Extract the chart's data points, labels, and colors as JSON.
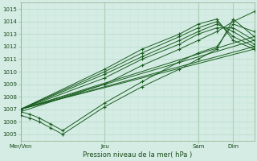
{
  "xlabel": "Pression niveau de la mer( hPa )",
  "bg_color": "#d4ece3",
  "grid_color_major": "#b8d8cc",
  "grid_color_minor": "#c8e4da",
  "line_color": "#1a5e20",
  "ylim": [
    1004.5,
    1015.5
  ],
  "yticks": [
    1005,
    1006,
    1007,
    1008,
    1009,
    1010,
    1011,
    1012,
    1013,
    1014,
    1015
  ],
  "xtick_positions": [
    0.0,
    0.36,
    0.76,
    0.91
  ],
  "xtick_labels": [
    "Mer/Ven",
    "Jeu",
    "Sam",
    "Dim"
  ],
  "lines": [
    {
      "x": [
        0.0,
        0.04,
        0.08,
        0.13,
        0.18,
        0.36,
        0.52,
        0.68,
        0.76,
        0.84,
        0.91,
        1.0
      ],
      "y": [
        1006.8,
        1006.6,
        1006.3,
        1005.8,
        1005.3,
        1007.5,
        1009.2,
        1010.8,
        1011.5,
        1012.0,
        1013.8,
        1013.2
      ]
    },
    {
      "x": [
        0.0,
        0.04,
        0.08,
        0.13,
        0.18,
        0.36,
        0.52,
        0.68,
        0.76,
        0.84,
        0.91,
        1.0
      ],
      "y": [
        1006.5,
        1006.3,
        1006.0,
        1005.5,
        1005.0,
        1007.2,
        1008.8,
        1010.2,
        1011.0,
        1011.8,
        1014.2,
        1012.8
      ]
    },
    {
      "x": [
        0.0,
        0.36,
        0.52,
        0.68,
        0.76,
        0.84,
        0.91,
        1.0
      ],
      "y": [
        1006.8,
        1009.0,
        1010.5,
        1011.8,
        1012.5,
        1013.2,
        1014.0,
        1014.8
      ]
    },
    {
      "x": [
        0.0,
        0.36,
        0.52,
        0.68,
        0.76,
        0.84,
        0.91,
        1.0
      ],
      "y": [
        1007.0,
        1009.5,
        1011.0,
        1012.2,
        1013.0,
        1013.5,
        1013.5,
        1012.5
      ]
    },
    {
      "x": [
        0.0,
        0.36,
        0.52,
        0.68,
        0.76,
        0.84,
        0.91,
        1.0
      ],
      "y": [
        1007.0,
        1009.8,
        1011.2,
        1012.5,
        1013.2,
        1013.8,
        1013.2,
        1012.2
      ]
    },
    {
      "x": [
        0.0,
        0.36,
        0.52,
        0.68,
        0.76,
        0.84,
        0.91,
        1.0
      ],
      "y": [
        1007.0,
        1010.0,
        1011.5,
        1012.8,
        1013.5,
        1014.0,
        1012.8,
        1012.0
      ]
    },
    {
      "x": [
        0.0,
        0.36,
        0.52,
        0.68,
        0.76,
        0.84,
        0.91,
        1.0
      ],
      "y": [
        1007.0,
        1010.2,
        1011.8,
        1013.0,
        1013.8,
        1014.2,
        1012.5,
        1011.8
      ]
    },
    {
      "x": [
        0.0,
        1.0
      ],
      "y": [
        1007.0,
        1012.5
      ]
    },
    {
      "x": [
        0.0,
        1.0
      ],
      "y": [
        1007.0,
        1012.8
      ]
    },
    {
      "x": [
        0.0,
        1.0
      ],
      "y": [
        1007.0,
        1012.0
      ]
    },
    {
      "x": [
        0.0,
        1.0
      ],
      "y": [
        1007.0,
        1011.8
      ]
    }
  ]
}
